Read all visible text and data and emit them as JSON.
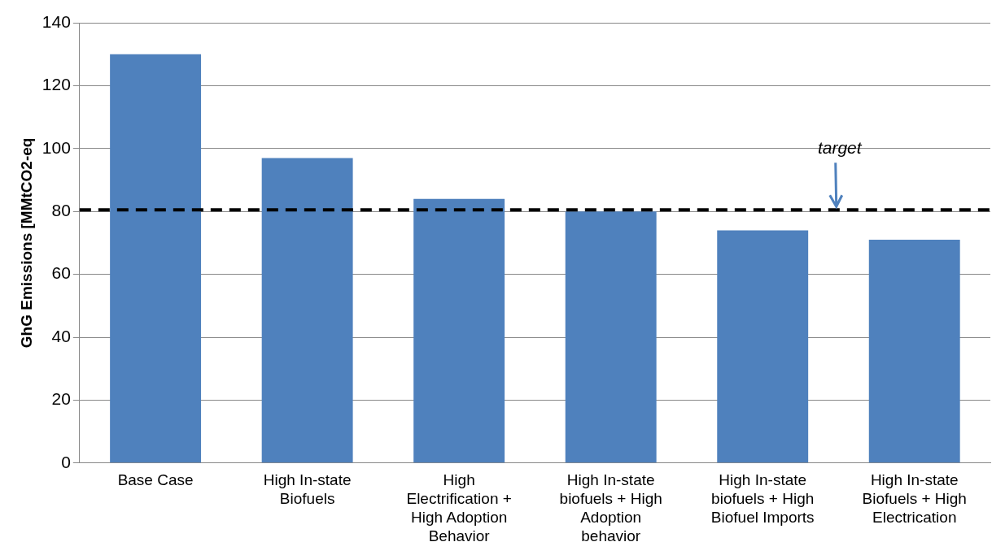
{
  "chart_data": {
    "type": "bar",
    "ylabel": "GhG Emissions [MMtCO2-eq",
    "categories": [
      "Base Case",
      "High In-state Biofuels",
      "High Electrification + High Adoption Behavior",
      "High In-state biofuels + High Adoption behavior",
      "High In-state biofuels + High Biofuel Imports",
      "High In-state Biofuels + High Electrication"
    ],
    "values": [
      130,
      97,
      84,
      80,
      74,
      71
    ],
    "color": "#4f81bd",
    "ylim": [
      0,
      140
    ],
    "yticks": [
      0,
      20,
      40,
      60,
      80,
      100,
      120,
      140
    ],
    "grid": "y",
    "legend": false,
    "ref_lines": [
      {
        "axis": "y",
        "value": 80.5,
        "label": "target",
        "color": "#000000",
        "line_style": "dashed"
      }
    ]
  }
}
